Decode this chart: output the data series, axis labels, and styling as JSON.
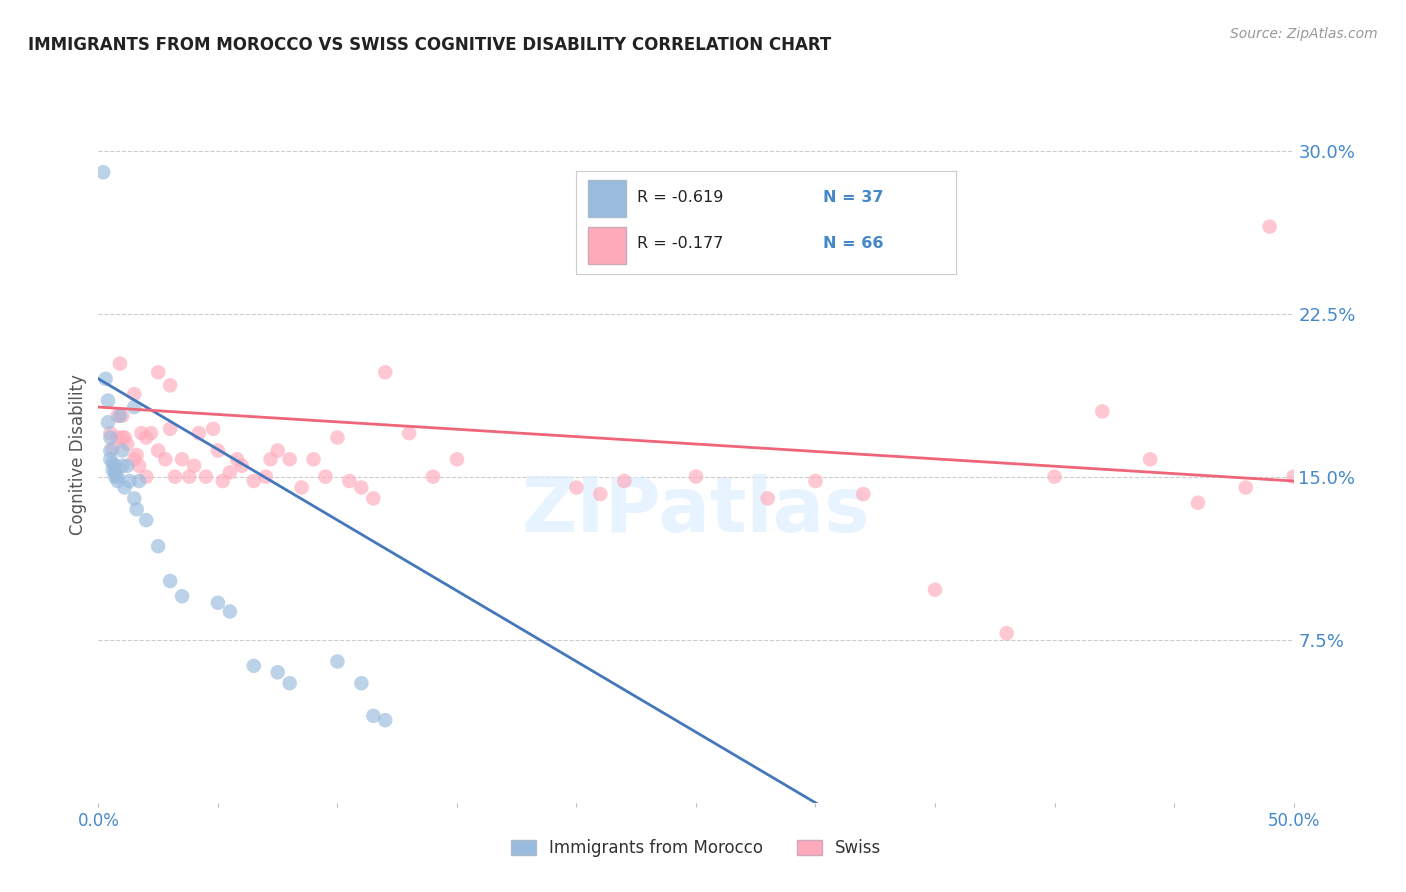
{
  "title": "IMMIGRANTS FROM MOROCCO VS SWISS COGNITIVE DISABILITY CORRELATION CHART",
  "source": "Source: ZipAtlas.com",
  "ylabel": "Cognitive Disability",
  "xlim": [
    0.0,
    0.5
  ],
  "ylim": [
    0.0,
    0.32
  ],
  "xticks": [
    0.0,
    0.05,
    0.1,
    0.15,
    0.2,
    0.25,
    0.3,
    0.35,
    0.4,
    0.45,
    0.5
  ],
  "xtick_labels": [
    "0.0%",
    "",
    "",
    "",
    "",
    "",
    "",
    "",
    "",
    "",
    "50.0%"
  ],
  "yticks_right": [
    0.075,
    0.15,
    0.225,
    0.3
  ],
  "ytick_labels_right": [
    "7.5%",
    "15.0%",
    "22.5%",
    "30.0%"
  ],
  "grid_color": "#cccccc",
  "background_color": "#ffffff",
  "legend_label1": "Immigrants from Morocco",
  "legend_label2": "Swiss",
  "legend_R1": "R = -0.619",
  "legend_N1": "N = 37",
  "legend_R2": "R = -0.177",
  "legend_N2": "N = 66",
  "color_blue": "#99bbdd",
  "color_pink": "#ffaabb",
  "color_blue_line": "#4477bb",
  "color_pink_line": "#ee6677",
  "color_axis_label": "#4488cc",
  "watermark": "ZIPatlas",
  "morocco_x": [
    0.002,
    0.003,
    0.004,
    0.004,
    0.005,
    0.005,
    0.005,
    0.006,
    0.006,
    0.007,
    0.007,
    0.007,
    0.008,
    0.008,
    0.009,
    0.01,
    0.01,
    0.011,
    0.012,
    0.013,
    0.015,
    0.015,
    0.016,
    0.017,
    0.02,
    0.025,
    0.03,
    0.035,
    0.05,
    0.055,
    0.065,
    0.075,
    0.08,
    0.1,
    0.11,
    0.115,
    0.12
  ],
  "morocco_y": [
    0.29,
    0.195,
    0.185,
    0.175,
    0.168,
    0.162,
    0.158,
    0.156,
    0.153,
    0.155,
    0.152,
    0.15,
    0.15,
    0.148,
    0.178,
    0.162,
    0.155,
    0.145,
    0.155,
    0.148,
    0.182,
    0.14,
    0.135,
    0.148,
    0.13,
    0.118,
    0.102,
    0.095,
    0.092,
    0.088,
    0.063,
    0.06,
    0.055,
    0.065,
    0.055,
    0.04,
    0.038
  ],
  "swiss_x": [
    0.005,
    0.006,
    0.008,
    0.008,
    0.009,
    0.01,
    0.01,
    0.011,
    0.012,
    0.015,
    0.015,
    0.016,
    0.017,
    0.018,
    0.02,
    0.02,
    0.022,
    0.025,
    0.025,
    0.028,
    0.03,
    0.03,
    0.032,
    0.035,
    0.038,
    0.04,
    0.042,
    0.045,
    0.048,
    0.05,
    0.052,
    0.055,
    0.058,
    0.06,
    0.065,
    0.07,
    0.072,
    0.075,
    0.08,
    0.085,
    0.09,
    0.095,
    0.1,
    0.105,
    0.11,
    0.115,
    0.12,
    0.13,
    0.14,
    0.15,
    0.2,
    0.21,
    0.22,
    0.25,
    0.28,
    0.3,
    0.32,
    0.35,
    0.38,
    0.4,
    0.42,
    0.44,
    0.46,
    0.48,
    0.49,
    0.5
  ],
  "swiss_y": [
    0.17,
    0.163,
    0.178,
    0.168,
    0.202,
    0.168,
    0.178,
    0.168,
    0.165,
    0.158,
    0.188,
    0.16,
    0.155,
    0.17,
    0.15,
    0.168,
    0.17,
    0.198,
    0.162,
    0.158,
    0.172,
    0.192,
    0.15,
    0.158,
    0.15,
    0.155,
    0.17,
    0.15,
    0.172,
    0.162,
    0.148,
    0.152,
    0.158,
    0.155,
    0.148,
    0.15,
    0.158,
    0.162,
    0.158,
    0.145,
    0.158,
    0.15,
    0.168,
    0.148,
    0.145,
    0.14,
    0.198,
    0.17,
    0.15,
    0.158,
    0.145,
    0.142,
    0.148,
    0.15,
    0.14,
    0.148,
    0.142,
    0.098,
    0.078,
    0.15,
    0.18,
    0.158,
    0.138,
    0.145,
    0.265,
    0.15
  ],
  "blue_line_x": [
    0.0,
    0.5
  ],
  "blue_line_y": [
    0.195,
    -0.13
  ],
  "pink_line_x": [
    0.0,
    0.5
  ],
  "pink_line_y": [
    0.182,
    0.148
  ]
}
